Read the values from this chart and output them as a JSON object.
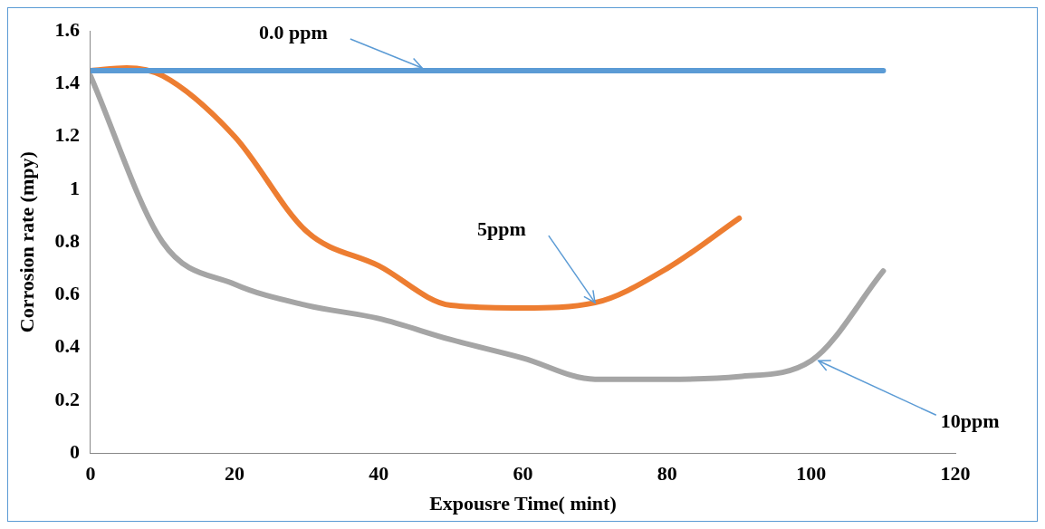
{
  "chart_data": {
    "type": "line",
    "xlabel": "Expousre Time( mint)",
    "ylabel": "Corrosion rate (mpy)",
    "xlim": [
      0,
      120
    ],
    "xticks": [
      0,
      20,
      40,
      60,
      80,
      100,
      120
    ],
    "ylim": [
      0,
      1.6
    ],
    "yticks": [
      0,
      0.2,
      0.4,
      0.6,
      0.8,
      1,
      1.2,
      1.4,
      1.6
    ],
    "grid": false,
    "legend": false,
    "marker": "none",
    "line_style": "solid",
    "series": [
      {
        "color": "#5b9bd5",
        "x": [
          0,
          10,
          20,
          30,
          40,
          50,
          60,
          70,
          80,
          90,
          100,
          110
        ],
        "values": [
          1.45,
          1.45,
          1.45,
          1.45,
          1.45,
          1.45,
          1.45,
          1.45,
          1.45,
          1.45,
          1.45,
          1.45
        ]
      },
      {
        "color": "#ed7d31",
        "x": [
          0,
          5,
          10,
          20,
          30,
          40,
          50,
          60,
          70,
          80,
          90
        ],
        "values": [
          1.45,
          1.46,
          1.43,
          1.2,
          0.84,
          0.71,
          0.56,
          0.55,
          0.57,
          0.7,
          0.89
        ]
      },
      {
        "color": "#a5a5a5",
        "x": [
          0,
          10,
          20,
          30,
          40,
          50,
          60,
          70,
          80,
          90,
          100,
          110
        ],
        "values": [
          1.43,
          0.8,
          0.64,
          0.56,
          0.51,
          0.43,
          0.36,
          0.28,
          0.28,
          0.29,
          0.35,
          0.69
        ]
      }
    ],
    "annotations": [
      {
        "text": "0.0 ppm",
        "x": 46,
        "y": 1.46
      },
      {
        "text": "5ppm",
        "x": 70,
        "y": 0.57
      },
      {
        "text": "10ppm",
        "x": 101,
        "y": 0.35
      }
    ]
  }
}
